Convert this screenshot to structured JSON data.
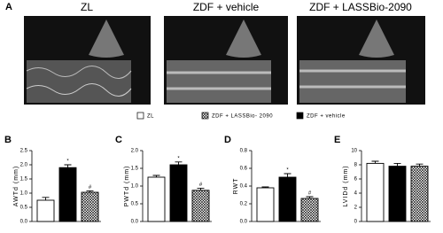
{
  "panel_a": {
    "label": "A",
    "images": [
      {
        "title": "ZL"
      },
      {
        "title": "ZDF + vehicle"
      },
      {
        "title": "ZDF + LASSBio-2090"
      }
    ]
  },
  "legend": {
    "items": [
      {
        "name": "ZL",
        "color": "#ffffff",
        "hatched": false
      },
      {
        "name": "ZDF + LASSBio- 2090",
        "color": "#ffffff",
        "hatched": true
      },
      {
        "name": "ZDF + vehicle",
        "color": "#000000",
        "hatched": false
      }
    ]
  },
  "chart_data": [
    {
      "type": "bar",
      "label": "B",
      "y_label": "AWTd (mm)",
      "values": [
        0.75,
        1.9,
        1.03
      ],
      "errors": [
        0.1,
        0.1,
        0.05
      ],
      "colors": [
        "#ffffff",
        "#000000",
        "#ffffff"
      ],
      "hatched": [
        false,
        false,
        true
      ],
      "annotations": [
        null,
        "*",
        "#"
      ],
      "ylim": [
        0,
        2.5
      ],
      "yticks": [
        {
          "value": 0,
          "label": "0.0"
        },
        {
          "value": 0.5,
          "label": "0.5"
        },
        {
          "value": 1,
          "label": "1.0"
        },
        {
          "value": 1.5,
          "label": "1.5"
        },
        {
          "value": 2,
          "label": "2.0"
        },
        {
          "value": 2.5,
          "label": "2.5"
        }
      ]
    },
    {
      "type": "bar",
      "label": "C",
      "y_label": "PWTd (mm)",
      "values": [
        1.25,
        1.6,
        0.88
      ],
      "errors": [
        0.05,
        0.08,
        0.06
      ],
      "colors": [
        "#ffffff",
        "#000000",
        "#ffffff"
      ],
      "hatched": [
        false,
        false,
        true
      ],
      "annotations": [
        null,
        "*",
        "#"
      ],
      "ylim": [
        0,
        2
      ],
      "yticks": [
        {
          "value": 0,
          "label": "0.0"
        },
        {
          "value": 0.5,
          "label": "0.5"
        },
        {
          "value": 1,
          "label": "1.0"
        },
        {
          "value": 1.5,
          "label": "1.5"
        },
        {
          "value": 2,
          "label": "2.0"
        }
      ]
    },
    {
      "type": "bar",
      "label": "D",
      "y_label": "RWT",
      "values": [
        0.38,
        0.5,
        0.26
      ],
      "errors": [
        0.01,
        0.04,
        0.02
      ],
      "colors": [
        "#ffffff",
        "#000000",
        "#ffffff"
      ],
      "hatched": [
        false,
        false,
        true
      ],
      "annotations": [
        null,
        "*",
        "#"
      ],
      "ylim": [
        0,
        0.8
      ],
      "yticks": [
        {
          "value": 0,
          "label": "0.0"
        },
        {
          "value": 0.2,
          "label": "0.2"
        },
        {
          "value": 0.4,
          "label": "0.4"
        },
        {
          "value": 0.6,
          "label": "0.6"
        },
        {
          "value": 0.8,
          "label": "0.8"
        }
      ]
    },
    {
      "type": "bar",
      "label": "E",
      "y_label": "LVIDd (mm)",
      "values": [
        8.2,
        7.8,
        7.8
      ],
      "errors": [
        0.3,
        0.4,
        0.3
      ],
      "colors": [
        "#ffffff",
        "#000000",
        "#ffffff"
      ],
      "hatched": [
        false,
        false,
        true
      ],
      "annotations": [
        null,
        null,
        null
      ],
      "ylim": [
        0,
        10
      ],
      "yticks": [
        0,
        2,
        4,
        6,
        8,
        10
      ]
    }
  ]
}
